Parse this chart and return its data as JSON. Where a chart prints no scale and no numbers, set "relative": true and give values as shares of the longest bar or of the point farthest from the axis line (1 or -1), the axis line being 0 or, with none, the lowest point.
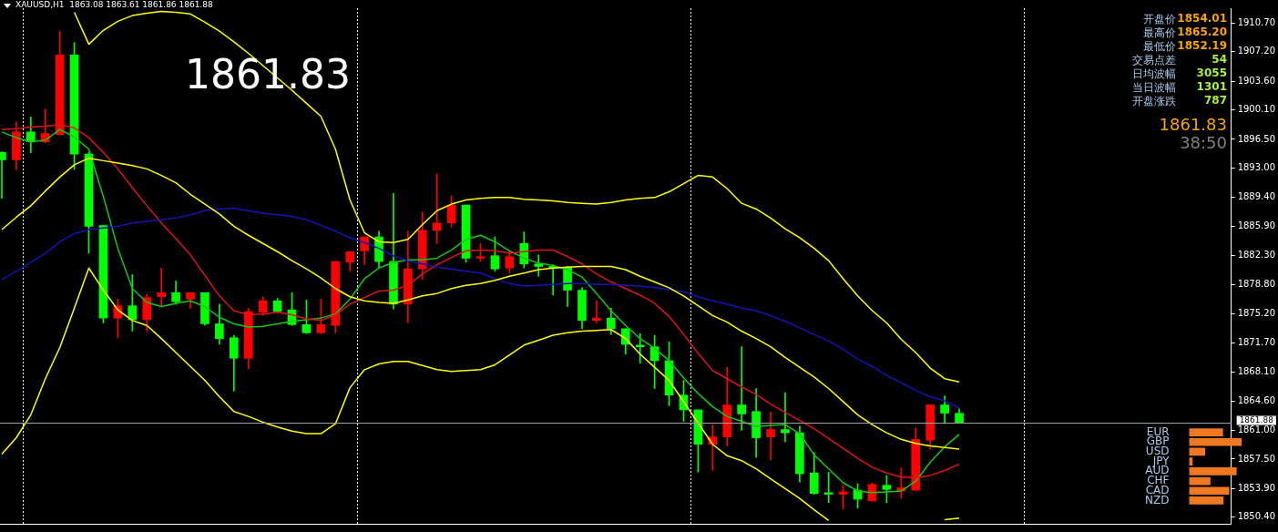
{
  "chart_data": [
    {
      "type": "candlestick",
      "title": "XAUUSD,H1  1863.08 1863.61 1861.86 1861.88",
      "categories": [
        null,
        null,
        null,
        null,
        null,
        null,
        null,
        null,
        null,
        null,
        null,
        null,
        null,
        null,
        null,
        null,
        null,
        null,
        null,
        null,
        null,
        null,
        null,
        null,
        null,
        null,
        null,
        null,
        null,
        null,
        null,
        null,
        null,
        null,
        null,
        null,
        null,
        null,
        null,
        null,
        null,
        null,
        null,
        null,
        null,
        null,
        null,
        null,
        null,
        null,
        null,
        null,
        null,
        null,
        null,
        null,
        null,
        null,
        null,
        null,
        null,
        null,
        null,
        null,
        null,
        null,
        null
      ],
      "ohlc": [
        [
          1894.9,
          1895.0,
          1889.3,
          1894.0
        ],
        [
          1894.0,
          1898.6,
          1892.8,
          1897.4
        ],
        [
          1897.4,
          1899.2,
          1894.9,
          1896.2
        ],
        [
          1896.2,
          1900.2,
          1896.1,
          1897.2
        ],
        [
          1897.1,
          1909.7,
          1897.0,
          1906.8
        ],
        [
          1906.8,
          1908.3,
          1892.8,
          1894.7
        ],
        [
          1894.7,
          1894.9,
          1882.6,
          1885.9
        ],
        [
          1886.0,
          1886.0,
          1874.1,
          1874.7
        ],
        [
          1874.7,
          1877.0,
          1872.3,
          1876.2
        ],
        [
          1876.2,
          1880.0,
          1873.1,
          1874.5
        ],
        [
          1874.5,
          1877.6,
          1873.1,
          1877.2
        ],
        [
          1877.3,
          1880.8,
          1876.1,
          1877.8
        ],
        [
          1877.8,
          1879.2,
          1876.4,
          1876.7
        ],
        [
          1877.0,
          1877.8,
          1875.9,
          1877.8
        ],
        [
          1877.8,
          1877.8,
          1873.8,
          1874.0
        ],
        [
          1874.0,
          1876.4,
          1871.5,
          1872.2
        ],
        [
          1872.3,
          1872.6,
          1865.8,
          1869.8
        ],
        [
          1869.8,
          1875.9,
          1868.5,
          1875.5
        ],
        [
          1875.4,
          1877.3,
          1875.0,
          1876.8
        ],
        [
          1876.8,
          1877.1,
          1875.4,
          1875.5
        ],
        [
          1875.7,
          1877.8,
          1873.8,
          1873.9
        ],
        [
          1873.9,
          1876.9,
          1872.8,
          1872.9
        ],
        [
          1872.9,
          1877.0,
          1872.8,
          1873.9
        ],
        [
          1873.8,
          1881.6,
          1872.9,
          1881.6
        ],
        [
          1881.5,
          1882.8,
          1880.4,
          1882.8
        ],
        [
          1882.9,
          1884.6,
          1881.2,
          1884.6
        ],
        [
          1884.6,
          1885.3,
          1880.8,
          1881.6
        ],
        [
          1881.6,
          1889.9,
          1875.8,
          1876.4
        ],
        [
          1876.4,
          1885.3,
          1874.1,
          1880.7
        ],
        [
          1880.7,
          1887.6,
          1879.4,
          1885.4
        ],
        [
          1885.4,
          1892.3,
          1883.8,
          1886.3
        ],
        [
          1886.3,
          1889.6,
          1885.8,
          1888.5
        ],
        [
          1888.5,
          1888.5,
          1881.5,
          1882.0
        ],
        [
          1882.0,
          1883.8,
          1881.6,
          1882.2
        ],
        [
          1882.3,
          1884.6,
          1880.4,
          1880.7
        ],
        [
          1880.8,
          1882.8,
          1880.2,
          1882.2
        ],
        [
          1883.8,
          1885.2,
          1880.8,
          1881.3
        ],
        [
          1881.3,
          1882.4,
          1879.8,
          1881.0
        ],
        [
          1881.0,
          1881.2,
          1877.5,
          1880.8
        ],
        [
          1880.9,
          1881.0,
          1876.1,
          1878.1
        ],
        [
          1878.1,
          1878.4,
          1873.4,
          1874.4
        ],
        [
          1874.4,
          1876.8,
          1874.1,
          1874.7
        ],
        [
          1874.7,
          1875.9,
          1872.7,
          1873.4
        ],
        [
          1873.4,
          1873.4,
          1870.3,
          1871.5
        ],
        [
          1871.4,
          1872.8,
          1869.2,
          1871.2
        ],
        [
          1871.2,
          1872.6,
          1866.1,
          1869.5
        ],
        [
          1869.5,
          1871.8,
          1864.0,
          1865.3
        ],
        [
          1865.3,
          1867.1,
          1862.1,
          1863.5
        ],
        [
          1863.5,
          1863.5,
          1855.9,
          1859.3
        ],
        [
          1859.3,
          1861.7,
          1856.1,
          1860.2
        ],
        [
          1860.2,
          1868.7,
          1859.1,
          1864.1
        ],
        [
          1864.1,
          1871.2,
          1861.0,
          1863.0
        ],
        [
          1863.3,
          1866.1,
          1857.7,
          1860.1
        ],
        [
          1860.2,
          1863.2,
          1857.4,
          1861.1
        ],
        [
          1861.1,
          1865.6,
          1859.6,
          1860.7
        ],
        [
          1860.7,
          1861.5,
          1854.7,
          1855.7
        ],
        [
          1855.8,
          1858.3,
          1853.2,
          1853.3
        ],
        [
          1853.4,
          1855.9,
          1852.2,
          1853.2
        ],
        [
          1853.2,
          1854.3,
          1851.4,
          1853.5
        ],
        [
          1853.7,
          1854.5,
          1851.5,
          1852.6
        ],
        [
          1852.4,
          1854.6,
          1852.4,
          1854.4
        ],
        [
          1854.3,
          1855.5,
          1852.2,
          1853.8
        ],
        [
          1853.6,
          1856.4,
          1852.7,
          1854.0
        ],
        [
          1853.7,
          1861.3,
          1853.7,
          1859.9
        ],
        [
          1859.8,
          1864.1,
          1858.7,
          1864.1
        ],
        [
          1864.1,
          1865.2,
          1861.8,
          1863.1
        ],
        [
          1863.08,
          1863.61,
          1861.86,
          1861.88
        ]
      ],
      "colors": [
        "#00ff00",
        "#ff0000",
        "#00ff00",
        "#ff0000",
        "#ff0000",
        "#00ff00",
        "#00ff00",
        "#00ff00",
        "#ff0000",
        "#00ff00",
        "#ff0000",
        "#ff0000",
        "#00ff00",
        "#ff0000",
        "#00ff00",
        "#00ff00",
        "#00ff00",
        "#ff0000",
        "#ff0000",
        "#00ff00",
        "#00ff00",
        "#00ff00",
        "#ff0000",
        "#ff0000",
        "#ff0000",
        "#ff0000",
        "#00ff00",
        "#00ff00",
        "#ff0000",
        "#ff0000",
        "#ff0000",
        "#ff0000",
        "#00ff00",
        "#ff0000",
        "#00ff00",
        "#ff0000",
        "#00ff00",
        "#00ff00",
        "#00ff00",
        "#00ff00",
        "#00ff00",
        "#ff0000",
        "#00ff00",
        "#00ff00",
        "#00ff00",
        "#00ff00",
        "#00ff00",
        "#00ff00",
        "#00ff00",
        "#ff0000",
        "#ff0000",
        "#00ff00",
        "#00ff00",
        "#ff0000",
        "#00ff00",
        "#00ff00",
        "#00ff00",
        "#00ff00",
        "#ff0000",
        "#00ff00",
        "#ff0000",
        "#00ff00",
        "#ff0000",
        "#ff0000",
        "#ff0000",
        "#00ff00",
        "#00ff00"
      ],
      "series": [
        {
          "type": "line",
          "color": "#ffff00",
          "values": [
            null,
            null,
            null,
            null,
            null,
            1912.0,
            1908.1,
            1909.8,
            1910.9,
            1911.6,
            1911.9,
            1912.1,
            1912.0,
            1911.8,
            1910.8,
            1909.7,
            1908.4,
            1907.0,
            1905.5,
            1904.0,
            1902.5,
            1900.9,
            1899.3,
            1895.3,
            1889.1,
            1885.1,
            1884.0,
            1883.9,
            1884.3,
            1886.1,
            1887.8,
            1888.6,
            1889.1,
            1889.3,
            1889.4,
            1889.4,
            1889.2,
            1889.1,
            1889.0,
            1888.8,
            1888.7,
            1888.6,
            1888.8,
            1889.1,
            1889.3,
            1889.4,
            1890.1,
            1891.1,
            1892.1,
            1891.9,
            1890.5,
            1888.7,
            1888.0,
            1886.9,
            1885.6,
            1884.5,
            1883.2,
            1881.7,
            1879.5,
            1877.4,
            1875.6,
            1874.1,
            1872.1,
            1870.5,
            1868.6,
            1867.3,
            1866.9
          ]
        },
        {
          "type": "line",
          "color": "#ffff00",
          "values": [
            1885.5,
            1887.0,
            1888.4,
            1890.2,
            1891.9,
            1893.4,
            1894.2,
            1893.9,
            1893.6,
            1893.3,
            1892.9,
            1892.1,
            1891.2,
            1889.8,
            1888.6,
            1887.4,
            1885.9,
            1884.8,
            1883.8,
            1882.8,
            1881.7,
            1880.7,
            1879.6,
            1878.3,
            1877.3,
            1876.8,
            1876.6,
            1876.5,
            1876.9,
            1877.4,
            1877.7,
            1878.3,
            1878.7,
            1878.9,
            1879.3,
            1879.8,
            1880.2,
            1880.6,
            1880.8,
            1880.9,
            1881.0,
            1881.0,
            1881.0,
            1880.6,
            1879.8,
            1879.1,
            1878.4,
            1877.4,
            1876.2,
            1875.0,
            1874.2,
            1873.1,
            1872.2,
            1871.2,
            1869.9,
            1868.7,
            1867.5,
            1866.1,
            1864.5,
            1862.9,
            1861.7,
            1860.7,
            1859.9,
            1859.4,
            1859.1,
            1858.9,
            1858.7
          ]
        },
        {
          "type": "line",
          "color": "#ffff00",
          "values": [
            1858.1,
            1860.1,
            1862.9,
            1867.3,
            1871.1,
            1875.9,
            1880.8,
            1878.1,
            1875.7,
            1874.4,
            1873.8,
            1872.2,
            1870.5,
            1868.8,
            1867.1,
            1865.1,
            1863.3,
            1862.7,
            1862.0,
            1861.4,
            1860.9,
            1860.6,
            1860.6,
            1861.8,
            1866.2,
            1868.4,
            1869.1,
            1869.4,
            1869.4,
            1868.9,
            1868.4,
            1868.2,
            1868.3,
            1868.4,
            1869.0,
            1870.2,
            1871.4,
            1872.0,
            1872.6,
            1872.9,
            1873.1,
            1873.2,
            1873.3,
            1872.2,
            1870.3,
            1868.7,
            1867.1,
            1864.5,
            1861.9,
            1859.3,
            1857.9,
            1857.3,
            1856.3,
            1855.1,
            1853.9,
            1852.7,
            1851.3,
            1850.0,
            null,
            null,
            null,
            null,
            null,
            null,
            null,
            1850.1,
            1850.3
          ]
        },
        {
          "type": "line",
          "color": "#1414b4",
          "values": [
            1879.4,
            1880.4,
            1881.5,
            1882.6,
            1884.0,
            1885.0,
            1885.5,
            1885.7,
            1885.9,
            1886.3,
            1886.5,
            1886.7,
            1886.9,
            1887.3,
            1887.8,
            1888.0,
            1888.1,
            1887.8,
            1887.5,
            1887.3,
            1887.1,
            1886.7,
            1886.0,
            1885.3,
            1884.5,
            1883.9,
            1883.2,
            1882.3,
            1881.7,
            1881.3,
            1880.9,
            1880.7,
            1880.4,
            1880.2,
            1879.5,
            1878.9,
            1878.6,
            1878.7,
            1878.8,
            1878.9,
            1878.9,
            1878.8,
            1878.8,
            1878.7,
            1878.6,
            1878.4,
            1878.2,
            1877.9,
            1877.3,
            1876.8,
            1876.4,
            1875.9,
            1875.6,
            1875.0,
            1874.3,
            1873.5,
            1872.7,
            1871.9,
            1870.9,
            1869.7,
            1868.8,
            1867.7,
            1866.8,
            1865.9,
            1865.1,
            1864.6,
            1863.7
          ]
        },
        {
          "type": "line",
          "color": "#e01414",
          "values": [
            1897.7,
            1897.8,
            1898.0,
            1898.1,
            1898.3,
            1897.9,
            1896.7,
            1894.9,
            1892.9,
            1890.6,
            1888.4,
            1886.3,
            1884.4,
            1882.4,
            1879.9,
            1877.4,
            1875.6,
            1875.1,
            1875.2,
            1875.4,
            1875.1,
            1874.6,
            1874.4,
            1875.1,
            1876.4,
            1877.2,
            1878.0,
            1878.1,
            1878.7,
            1880.1,
            1881.2,
            1882.1,
            1882.9,
            1883.0,
            1882.9,
            1882.6,
            1882.8,
            1883.0,
            1883.0,
            1882.2,
            1881.3,
            1880.1,
            1879.1,
            1878.3,
            1877.5,
            1876.5,
            1874.9,
            1872.7,
            1870.4,
            1868.3,
            1867.3,
            1866.3,
            1865.4,
            1864.2,
            1863.2,
            1862.2,
            1861.2,
            1860.0,
            1858.8,
            1857.6,
            1856.5,
            1855.8,
            1855.3,
            1855.2,
            1855.5,
            1856.1,
            1856.9
          ]
        },
        {
          "type": "line",
          "color": "#14c814",
          "values": [
            1897.4,
            1896.7,
            1896.2,
            1896.4,
            1897.7,
            1896.8,
            1895.3,
            1889.5,
            1883.2,
            1878.3,
            1876.6,
            1876.1,
            1876.5,
            1876.8,
            1876.1,
            1874.8,
            1874.0,
            1873.6,
            1873.7,
            1874.0,
            1874.3,
            1874.5,
            1874.7,
            1875.2,
            1877.0,
            1879.5,
            1880.8,
            1881.5,
            1881.8,
            1881.8,
            1882.0,
            1883.0,
            1884.3,
            1884.8,
            1884.0,
            1882.9,
            1882.0,
            1881.4,
            1881.1,
            1880.6,
            1879.7,
            1877.7,
            1875.6,
            1873.8,
            1872.2,
            1871.0,
            1869.5,
            1867.4,
            1865.5,
            1863.9,
            1862.7,
            1862.1,
            1861.5,
            1861.6,
            1861.7,
            1860.6,
            1858.0,
            1856.3,
            1854.6,
            1853.6,
            1853.4,
            1853.5,
            1853.6,
            1854.8,
            1857.1,
            1859.0,
            1860.5
          ]
        }
      ],
      "ylim": [
        1849.6,
        1912.5
      ],
      "yticks": [
        {
          "value": 1850.4,
          "label": "1850.40"
        },
        {
          "value": 1853.9,
          "label": "1853.90"
        },
        {
          "value": 1857.5,
          "label": "1857.50"
        },
        {
          "value": 1861.0,
          "label": "1861.00"
        },
        {
          "value": 1864.6,
          "label": "1864.60"
        },
        {
          "value": 1868.1,
          "label": "1868.10"
        },
        {
          "value": 1871.7,
          "label": "1871.70"
        },
        {
          "value": 1875.2,
          "label": "1875.20"
        },
        {
          "value": 1878.8,
          "label": "1878.80"
        },
        {
          "value": 1882.3,
          "label": "1882.30"
        },
        {
          "value": 1885.9,
          "label": "1885.90"
        },
        {
          "value": 1889.4,
          "label": "1889.40"
        },
        {
          "value": 1893.0,
          "label": "1893.00"
        },
        {
          "value": 1896.5,
          "label": "1896.50"
        },
        {
          "value": 1900.1,
          "label": "1900.10"
        },
        {
          "value": 1903.6,
          "label": "1903.60"
        },
        {
          "value": 1907.2,
          "label": "1907.20"
        },
        {
          "value": 1910.7,
          "label": "1910.70"
        }
      ],
      "ref_lines": [
        {
          "axis": "y",
          "value": 1861.88,
          "label": "1861.88",
          "color": "#a0a0a0"
        }
      ],
      "tick_labels": "y",
      "grid": "x",
      "annotations": [
        "1861.83",
        "开盘价",
        "1854.01",
        "最高价",
        "1865.20",
        "最低价",
        "1852.19",
        "交易点差",
        "54",
        "日均波幅",
        "3055",
        "当日波幅",
        "1301",
        "开盘涨跌",
        "787",
        "1861.83",
        "38:50"
      ]
    },
    {
      "type": "bar",
      "orientation": "horizontal",
      "relative": true,
      "categories": [
        "EUR",
        "GBP",
        "USD",
        "JPY",
        "AUD",
        "CHF",
        "CAD",
        "NZD"
      ],
      "values": [
        0.64,
        1,
        0.3,
        0.06,
        0.9,
        0.4,
        0.76,
        0.65
      ],
      "color": "#f07820"
    }
  ]
}
